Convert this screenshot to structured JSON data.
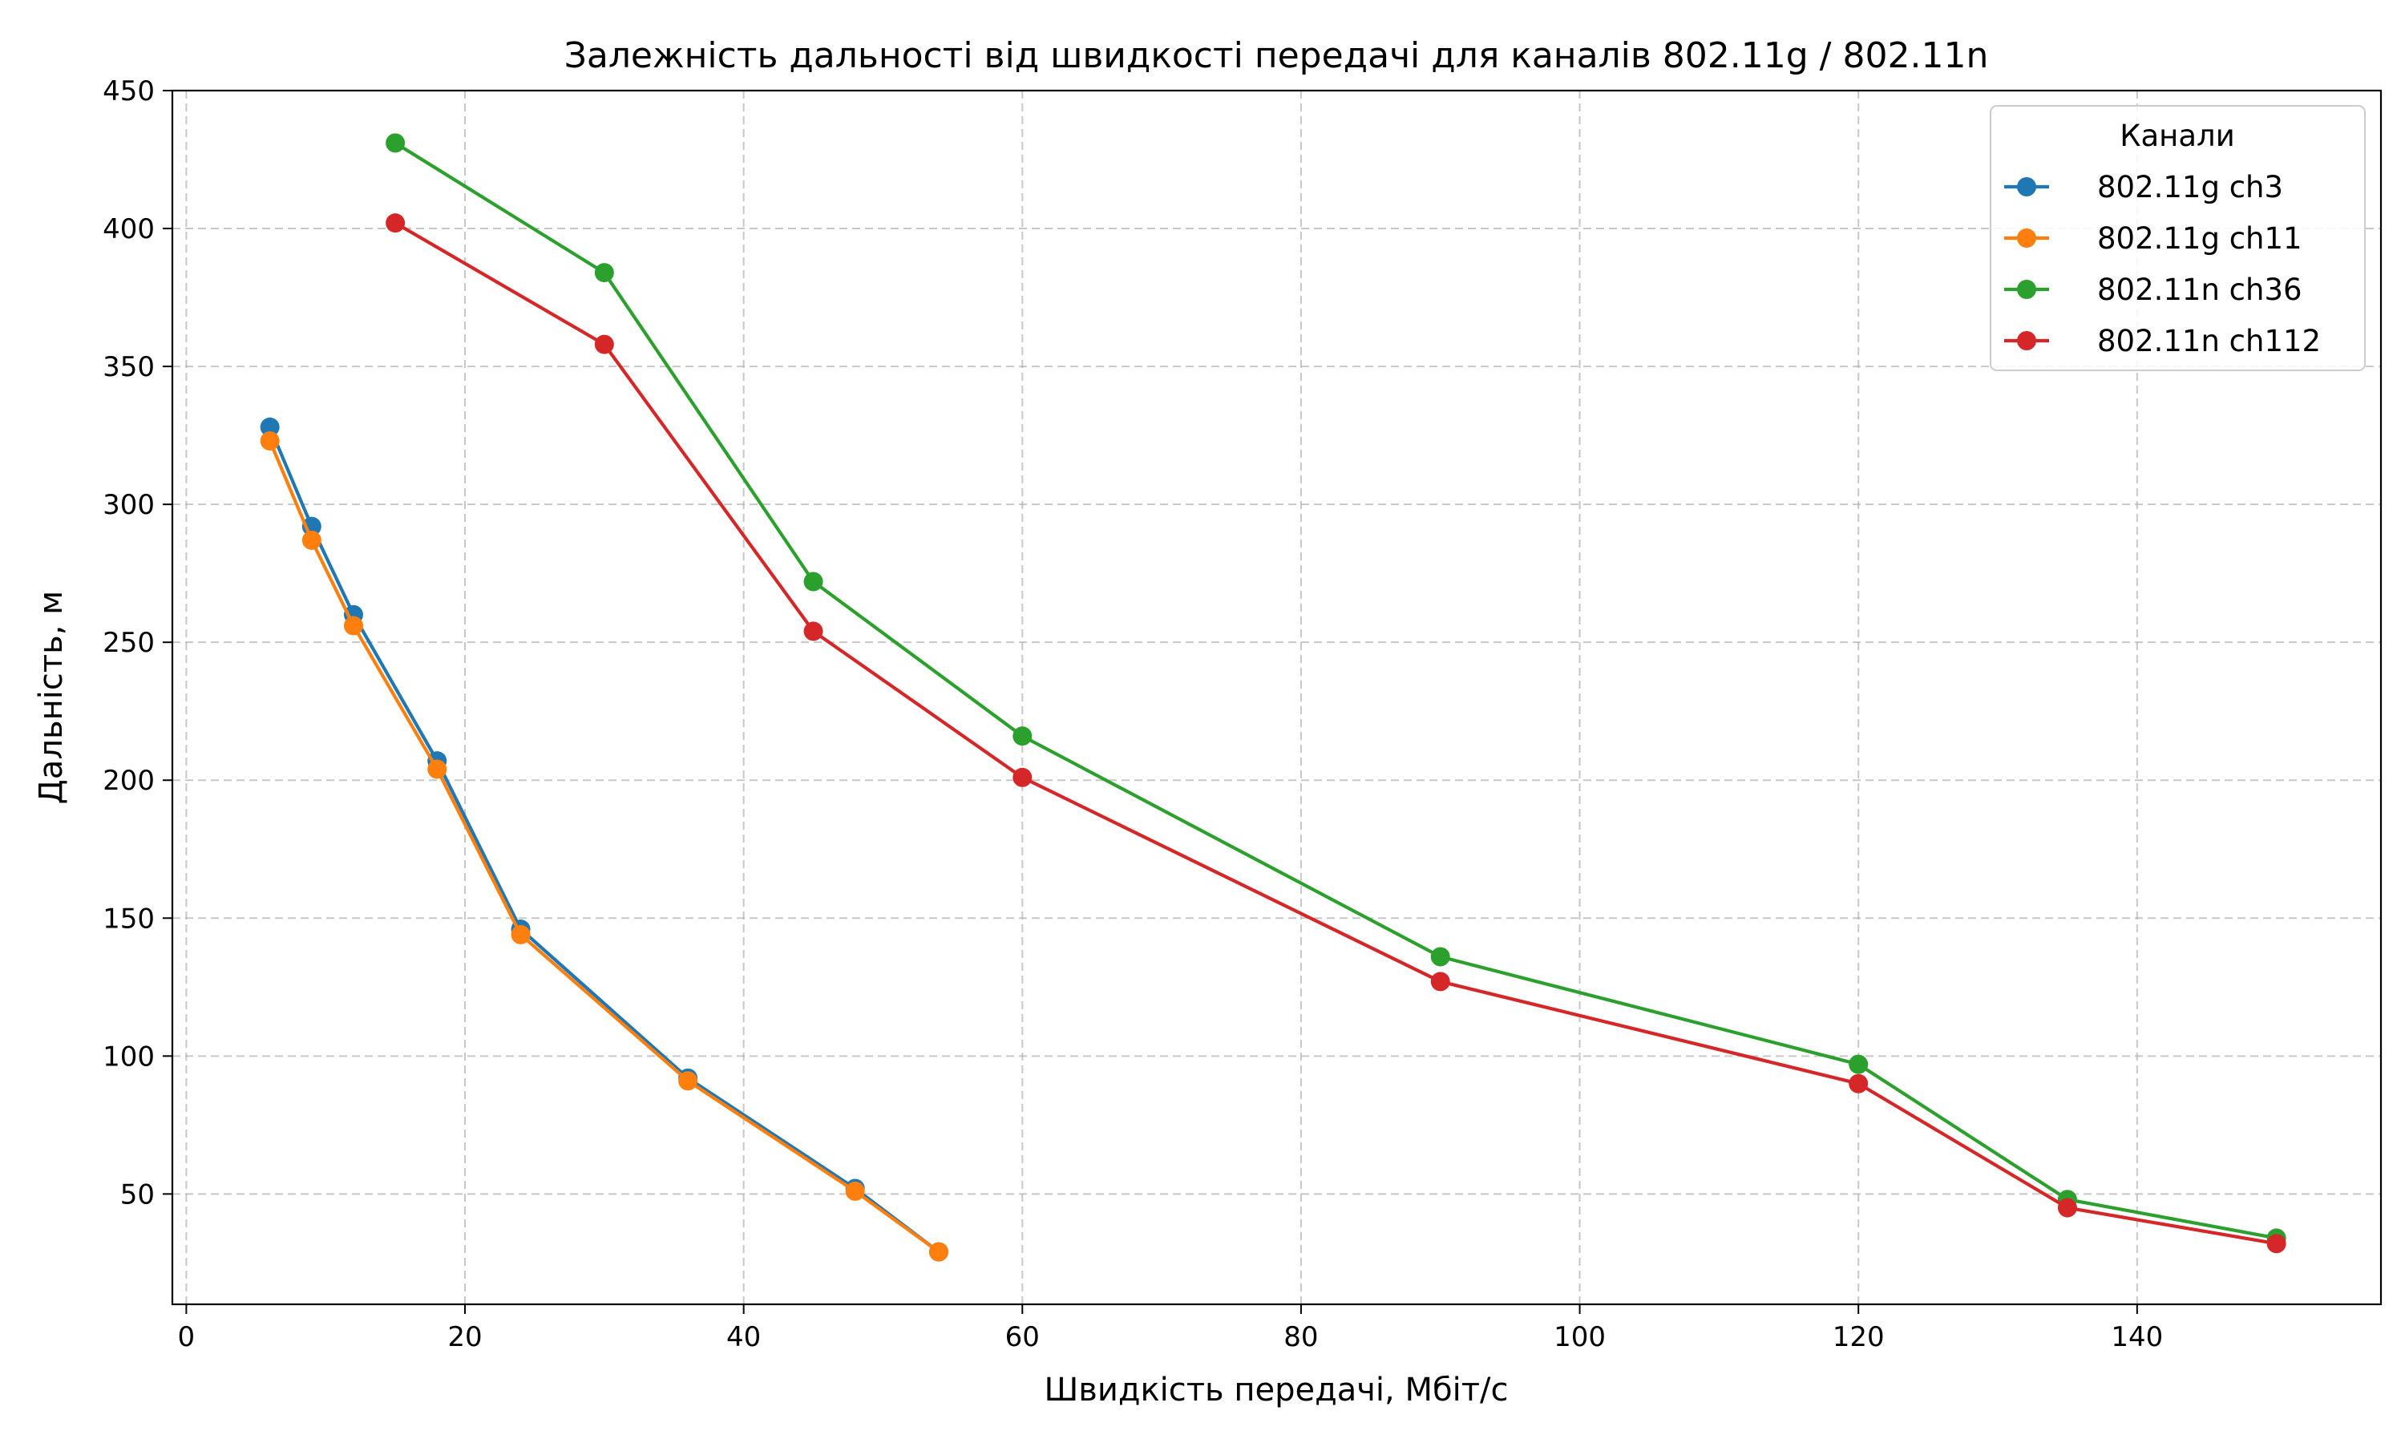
{
  "chart_data": {
    "type": "line",
    "title": "Залежність дальності від швидкості передачі для каналів 802.11g / 802.11n",
    "xlabel": "Швидкість передачі, Мбіт/с",
    "ylabel": "Дальність, м",
    "xlim": [
      -1,
      157.5
    ],
    "ylim": [
      10,
      450
    ],
    "xticks": [
      0,
      20,
      40,
      60,
      80,
      100,
      120,
      140
    ],
    "yticks": [
      50,
      100,
      150,
      200,
      250,
      300,
      350,
      400,
      450
    ],
    "grid": true,
    "legend": {
      "title": "Канали",
      "position": "top-right"
    },
    "series": [
      {
        "name": "802.11g ch3",
        "color": "#1f77b4",
        "x": [
          6,
          9,
          12,
          18,
          24,
          36,
          48,
          54
        ],
        "y": [
          328,
          292,
          260,
          207,
          146,
          92,
          52,
          29
        ]
      },
      {
        "name": "802.11g ch11",
        "color": "#ff7f0e",
        "x": [
          6,
          9,
          12,
          18,
          24,
          36,
          48,
          54
        ],
        "y": [
          323,
          287,
          256,
          204,
          144,
          91,
          51,
          29
        ]
      },
      {
        "name": "802.11n ch36",
        "color": "#2ca02c",
        "x": [
          15,
          30,
          45,
          60,
          90,
          120,
          135,
          150
        ],
        "y": [
          431,
          384,
          272,
          216,
          136,
          97,
          48,
          34
        ]
      },
      {
        "name": "802.11n ch112",
        "color": "#d62728",
        "x": [
          15,
          30,
          45,
          60,
          90,
          120,
          135,
          150
        ],
        "y": [
          402,
          358,
          254,
          201,
          127,
          90,
          45,
          32
        ]
      }
    ]
  }
}
